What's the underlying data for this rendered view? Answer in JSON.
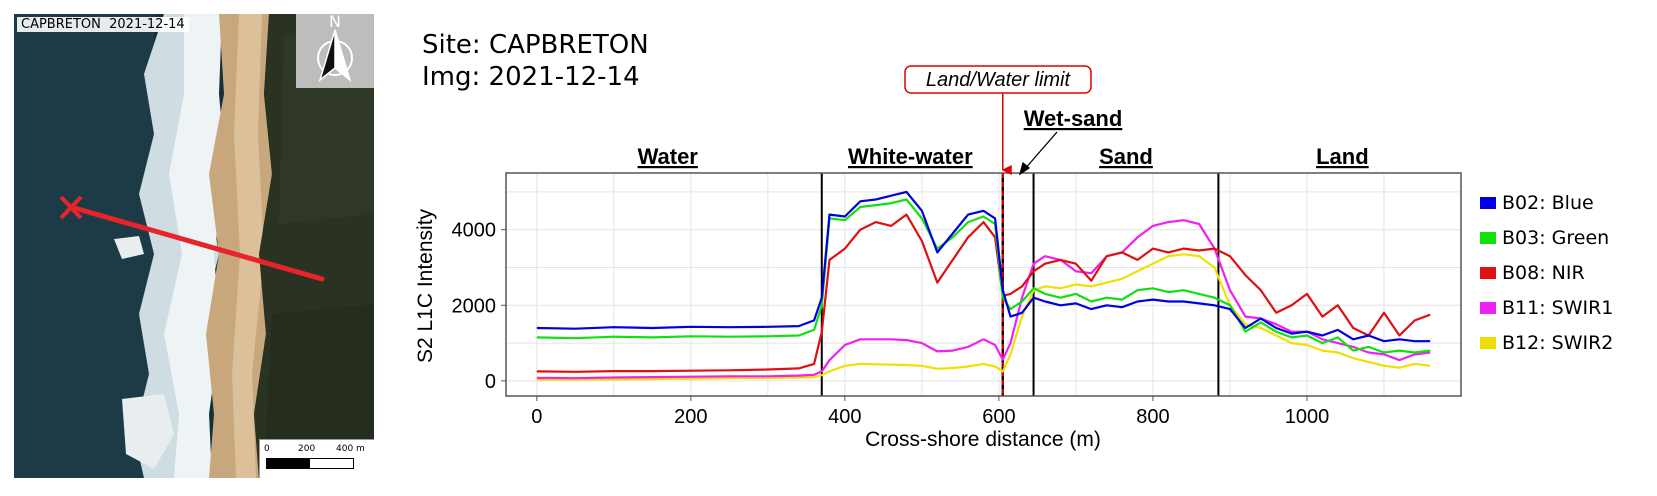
{
  "map": {
    "caption_site": "CAPBRETON",
    "caption_date": "2021-12-14",
    "north_label": "N",
    "scale_labels": [
      "0",
      "200",
      "400 m"
    ],
    "colors": {
      "water": "#16303a",
      "surf": "#e8eef0",
      "sand": "#c8a77c",
      "forest": "#2a3222",
      "transect": "#e8242a"
    }
  },
  "site_label": "Site: CAPBRETON",
  "img_label": "Img: 2021-12-14",
  "chart_data": {
    "type": "line",
    "xlabel": "Cross-shore distance (m)",
    "ylabel": "S2 L1C Intensity",
    "xlim": [
      -40,
      1200
    ],
    "ylim": [
      -400,
      5500
    ],
    "xticks": [
      0,
      200,
      400,
      600,
      800,
      1000
    ],
    "yticks": [
      0,
      2000,
      4000
    ],
    "grid": true,
    "legend_position": "right",
    "zones": [
      {
        "label": "Water",
        "x_center": 170
      },
      {
        "label": "White-water",
        "x_center": 485
      },
      {
        "label": "Sand",
        "x_center": 765
      },
      {
        "label": "Land",
        "x_center": 1046
      }
    ],
    "annotations": {
      "wet_sand": "Wet-sand",
      "land_water_limit": "Land/Water limit"
    },
    "boundaries": [
      370,
      645,
      885
    ],
    "land_water_limit_x": 605,
    "x": [
      0,
      50,
      100,
      150,
      200,
      250,
      300,
      340,
      360,
      370,
      380,
      400,
      420,
      440,
      460,
      480,
      500,
      520,
      540,
      560,
      580,
      595,
      605,
      615,
      630,
      645,
      660,
      680,
      700,
      720,
      740,
      760,
      780,
      800,
      820,
      840,
      860,
      880,
      900,
      920,
      940,
      960,
      980,
      1000,
      1020,
      1040,
      1060,
      1080,
      1100,
      1120,
      1140,
      1160
    ],
    "series": [
      {
        "name": "B02: Blue",
        "color": "#0000e0",
        "values": [
          1400,
          1380,
          1420,
          1400,
          1430,
          1420,
          1430,
          1450,
          1600,
          2200,
          4400,
          4350,
          4750,
          4800,
          4900,
          5000,
          4500,
          3400,
          3900,
          4400,
          4500,
          4300,
          2400,
          1700,
          1800,
          2200,
          2100,
          2000,
          2050,
          1900,
          2000,
          1950,
          2100,
          2150,
          2100,
          2100,
          2050,
          2000,
          1900,
          1400,
          1650,
          1400,
          1250,
          1300,
          1200,
          1350,
          1100,
          1200,
          1050,
          1100,
          1050,
          1050
        ]
      },
      {
        "name": "B03: Green",
        "color": "#10e010",
        "values": [
          1150,
          1130,
          1170,
          1150,
          1180,
          1170,
          1180,
          1200,
          1350,
          2000,
          4300,
          4250,
          4600,
          4650,
          4700,
          4800,
          4300,
          3500,
          3800,
          4200,
          4350,
          4150,
          2200,
          1900,
          2100,
          2450,
          2300,
          2200,
          2300,
          2100,
          2200,
          2150,
          2400,
          2450,
          2350,
          2400,
          2300,
          2200,
          2000,
          1300,
          1550,
          1300,
          1150,
          1200,
          1000,
          1150,
          800,
          900,
          750,
          800,
          750,
          800
        ]
      },
      {
        "name": "B08: NIR",
        "color": "#e01010",
        "values": [
          250,
          240,
          260,
          260,
          270,
          280,
          300,
          330,
          450,
          1300,
          3200,
          3500,
          4000,
          4200,
          4100,
          4400,
          3700,
          2600,
          3200,
          3800,
          4200,
          3800,
          2250,
          2300,
          2500,
          2900,
          3100,
          3200,
          3100,
          2650,
          3300,
          3400,
          3200,
          3500,
          3400,
          3500,
          3450,
          3500,
          3300,
          2800,
          2400,
          1800,
          2000,
          2300,
          1700,
          2000,
          1400,
          1200,
          1800,
          1200,
          1600,
          1750
        ]
      },
      {
        "name": "B11: SWIR1",
        "color": "#f020f0",
        "values": [
          80,
          70,
          90,
          100,
          110,
          120,
          120,
          140,
          160,
          250,
          550,
          950,
          1100,
          1100,
          1100,
          1080,
          1000,
          780,
          800,
          900,
          1100,
          950,
          560,
          1000,
          2200,
          3100,
          3300,
          3200,
          2900,
          2850,
          3300,
          3400,
          3800,
          4100,
          4200,
          4250,
          4150,
          3500,
          2400,
          1700,
          1650,
          1500,
          1300,
          1300,
          1100,
          1000,
          900,
          750,
          700,
          550,
          700,
          750
        ]
      },
      {
        "name": "B12: SWIR2",
        "color": "#f0e000",
        "values": [
          30,
          30,
          40,
          50,
          60,
          70,
          80,
          90,
          100,
          150,
          250,
          400,
          450,
          440,
          430,
          420,
          400,
          320,
          340,
          380,
          450,
          380,
          250,
          700,
          1700,
          2400,
          2500,
          2450,
          2550,
          2500,
          2600,
          2700,
          2900,
          3100,
          3300,
          3350,
          3300,
          3000,
          2000,
          1500,
          1400,
          1200,
          1000,
          950,
          800,
          750,
          600,
          500,
          400,
          350,
          450,
          400
        ]
      }
    ]
  }
}
